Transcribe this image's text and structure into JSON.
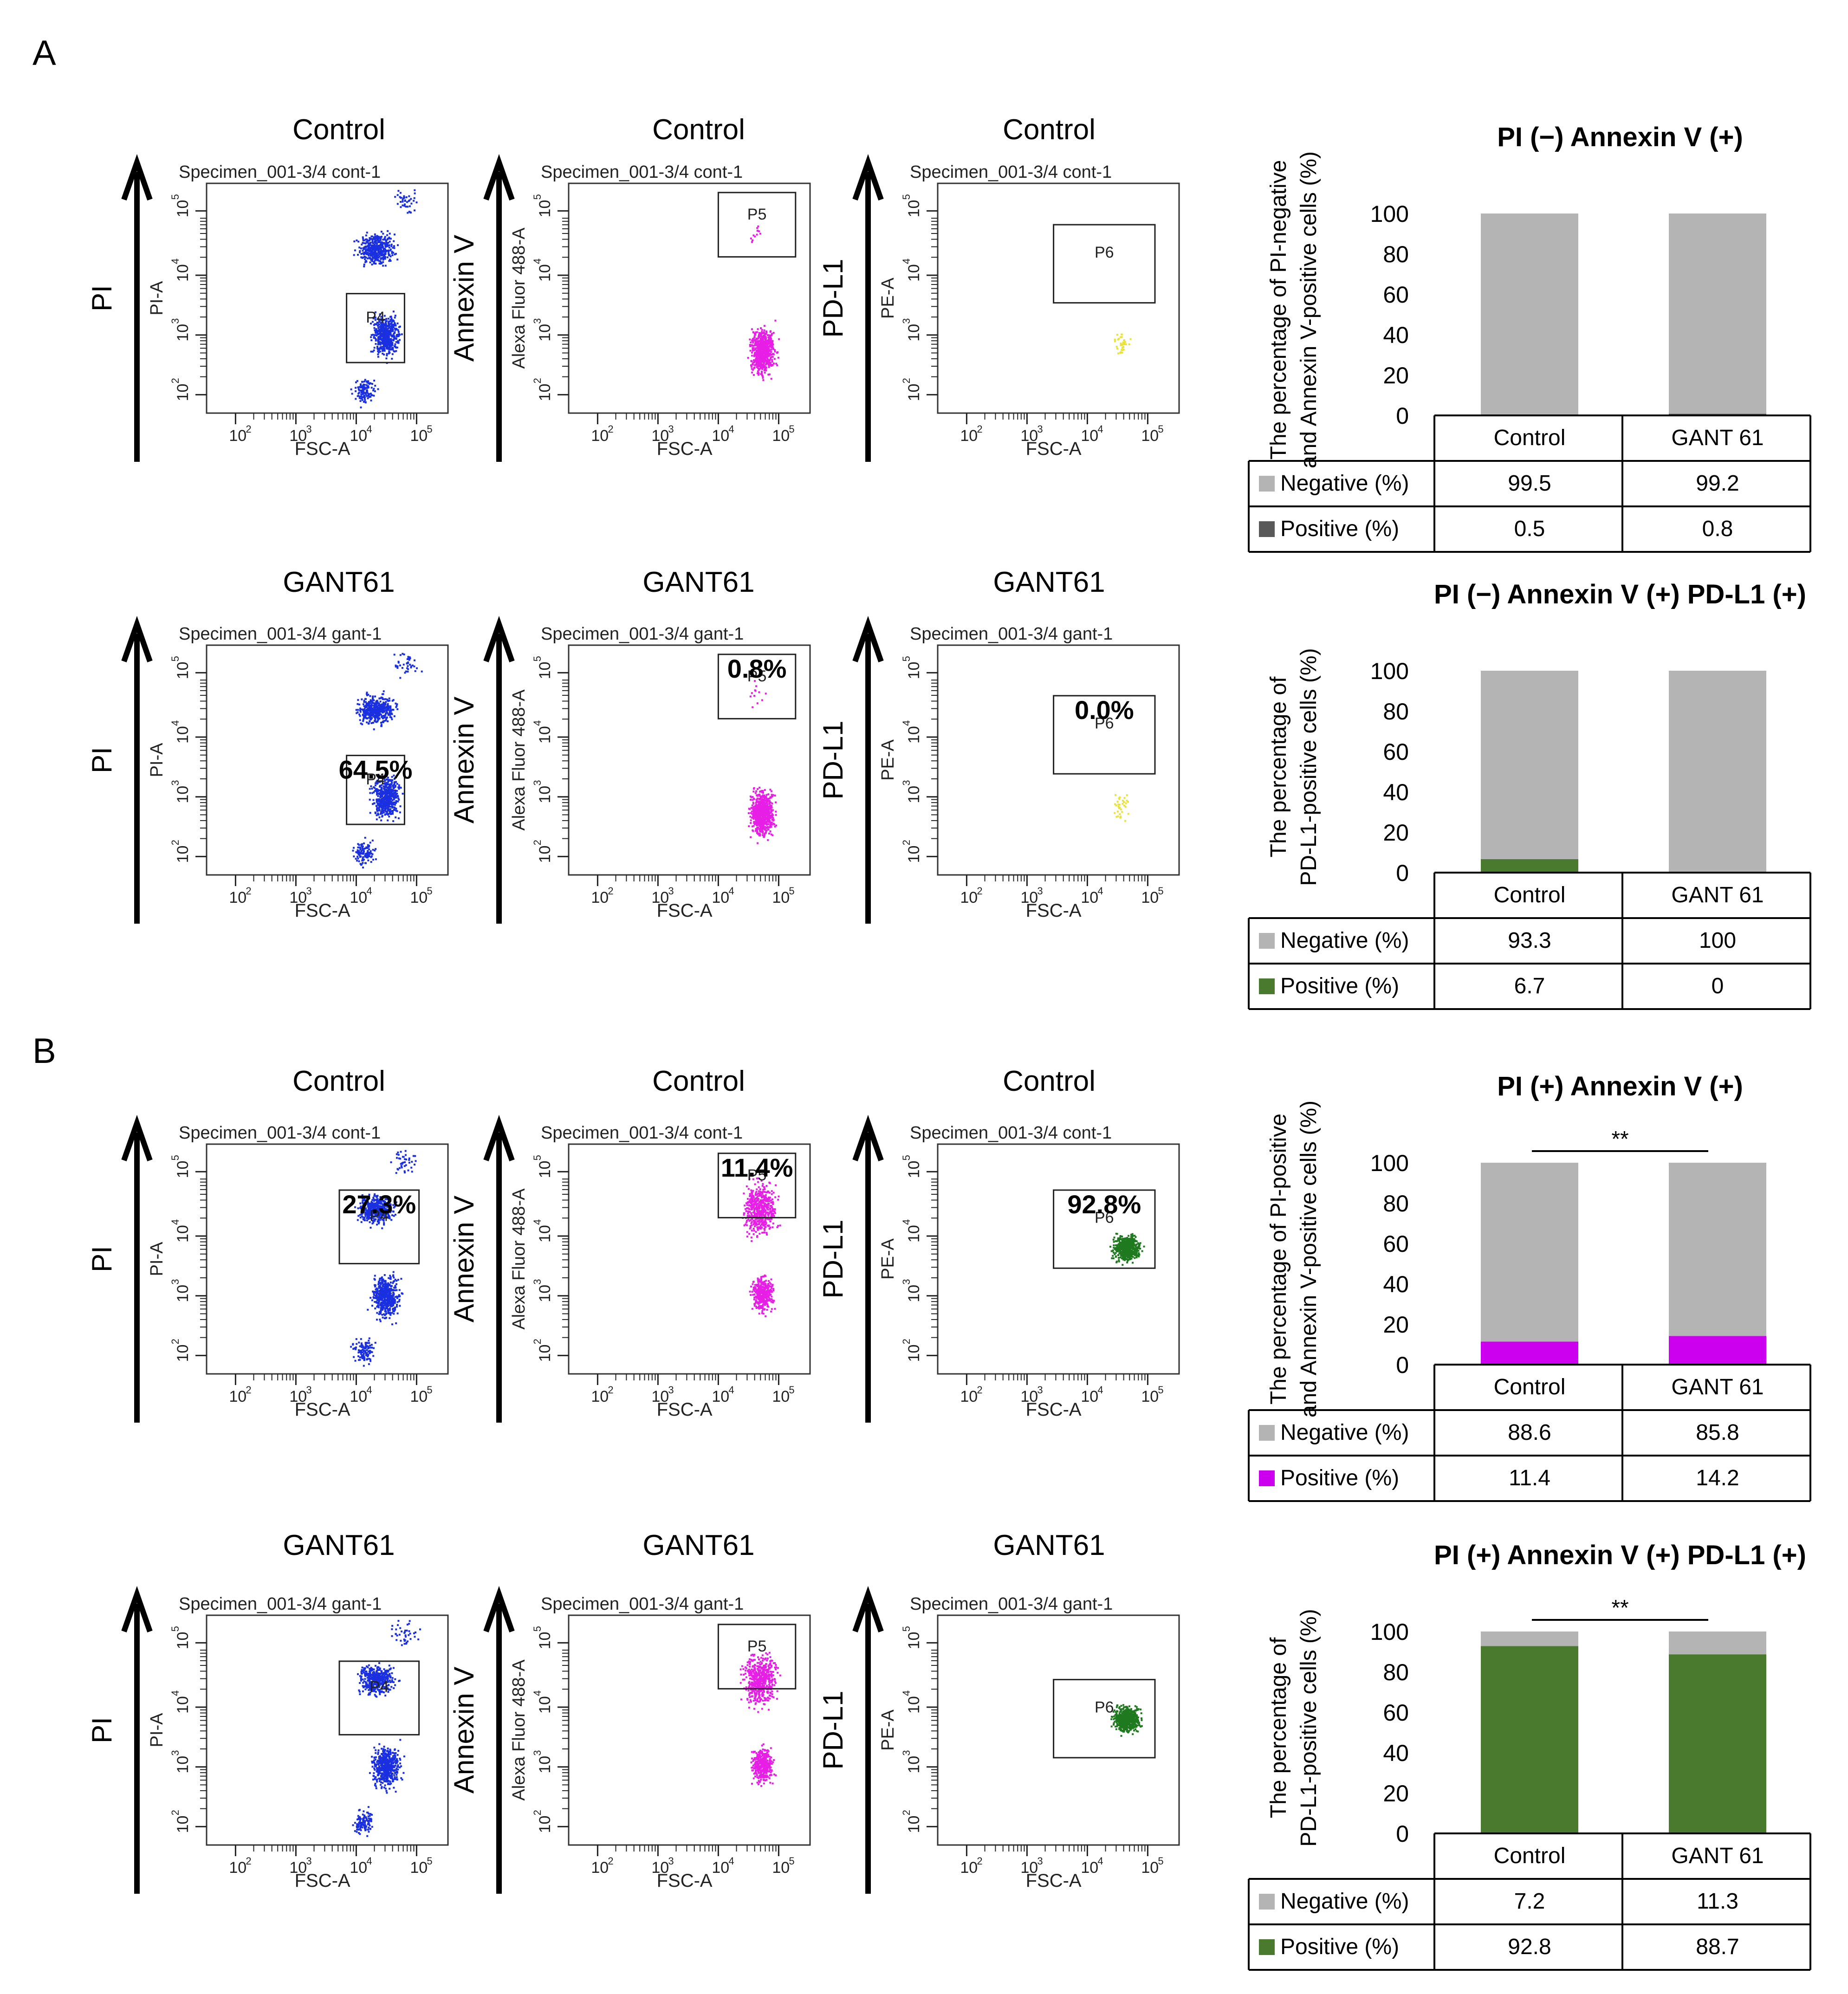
{
  "panel_labels": {
    "A": "A",
    "B": "B"
  },
  "axis_names": {
    "pi": "PI",
    "annexin": "Annexin V",
    "pdl1": "PD-L1"
  },
  "flow_text": {
    "specimen_cont": "Specimen_001-3/4 cont-1",
    "specimen_gant": "Specimen_001-3/4 gant-1",
    "x_axis": "FSC-A",
    "y_pi": "PI-A",
    "y_annexin": "Alexa Fluor 488-A",
    "y_pe": "PE-A",
    "gate_p4": "P4",
    "gate_p5": "P5",
    "gate_p6": "P6",
    "tick_base": "10",
    "exp2": "2",
    "exp3": "3",
    "exp4": "4",
    "exp5": "5"
  },
  "flow_rows": [
    {
      "title": "Control",
      "percents": [
        "",
        "",
        ""
      ]
    },
    {
      "title": "GANT61",
      "percents": [
        "64.5%",
        "0.8%",
        "0.0%"
      ]
    },
    {
      "title": "Control",
      "percents": [
        "27.3%",
        "11.4%",
        "92.8%"
      ]
    },
    {
      "title": "GANT61",
      "percents": [
        "",
        "",
        ""
      ]
    }
  ],
  "tables": {
    "negative_label": "Negative (%)",
    "positive_label": "Positive (%)"
  },
  "chart_data": [
    {
      "type": "bar",
      "stacked": true,
      "title": "PI (−) Annexin V (+)",
      "ylabel_line1": "The percentage of PI-negative",
      "ylabel_line2": "and Annexin V-positive cells (%)",
      "categories": [
        "Control",
        "GANT 61"
      ],
      "ylim": [
        0,
        100
      ],
      "yticks": [
        0,
        20,
        40,
        60,
        80,
        100
      ],
      "significance": "",
      "series": [
        {
          "name": "Positive (%)",
          "color": "#595959",
          "values": [
            0.5,
            0.8
          ]
        },
        {
          "name": "Negative (%)",
          "color": "#b4b4b4",
          "values": [
            99.5,
            99.2
          ]
        }
      ],
      "table": {
        "negative": [
          "99.5",
          "99.2"
        ],
        "positive": [
          "0.5",
          "0.8"
        ]
      }
    },
    {
      "type": "bar",
      "stacked": true,
      "title": "PI (−) Annexin V (+) PD-L1 (+)",
      "ylabel_line1": "The percentage of",
      "ylabel_line2": "PD-L1-positive cells (%)",
      "categories": [
        "Control",
        "GANT 61"
      ],
      "ylim": [
        0,
        100
      ],
      "yticks": [
        0,
        20,
        40,
        60,
        80,
        100
      ],
      "significance": "",
      "series": [
        {
          "name": "Positive (%)",
          "color": "#4a7a2e",
          "values": [
            6.7,
            0
          ]
        },
        {
          "name": "Negative (%)",
          "color": "#b4b4b4",
          "values": [
            93.3,
            100
          ]
        }
      ],
      "table": {
        "negative": [
          "93.3",
          "100"
        ],
        "positive": [
          "6.7",
          "0"
        ]
      }
    },
    {
      "type": "bar",
      "stacked": true,
      "title": "PI (+) Annexin V (+)",
      "ylabel_line1": "The percentage of PI-positive",
      "ylabel_line2": "and Annexin V-positive cells (%)",
      "categories": [
        "Control",
        "GANT 61"
      ],
      "ylim": [
        0,
        100
      ],
      "yticks": [
        0,
        20,
        40,
        60,
        80,
        100
      ],
      "significance": "**",
      "series": [
        {
          "name": "Positive (%)",
          "color": "#cc00ee",
          "values": [
            11.4,
            14.2
          ]
        },
        {
          "name": "Negative (%)",
          "color": "#b4b4b4",
          "values": [
            88.6,
            85.8
          ]
        }
      ],
      "table": {
        "negative": [
          "88.6",
          "85.8"
        ],
        "positive": [
          "11.4",
          "14.2"
        ]
      }
    },
    {
      "type": "bar",
      "stacked": true,
      "title": "PI (+) Annexin V (+) PD-L1 (+)",
      "ylabel_line1": "The percentage of",
      "ylabel_line2": "PD-L1-positive cells (%)",
      "categories": [
        "Control",
        "GANT 61"
      ],
      "ylim": [
        0,
        100
      ],
      "yticks": [
        0,
        20,
        40,
        60,
        80,
        100
      ],
      "significance": "**",
      "series": [
        {
          "name": "Positive (%)",
          "color": "#4a7a2e",
          "values": [
            92.8,
            88.7
          ]
        },
        {
          "name": "Negative (%)",
          "color": "#b4b4b4",
          "values": [
            7.2,
            11.3
          ]
        }
      ],
      "table": {
        "negative": [
          "7.2",
          "11.3"
        ],
        "positive": [
          "92.8",
          "88.7"
        ]
      }
    }
  ]
}
